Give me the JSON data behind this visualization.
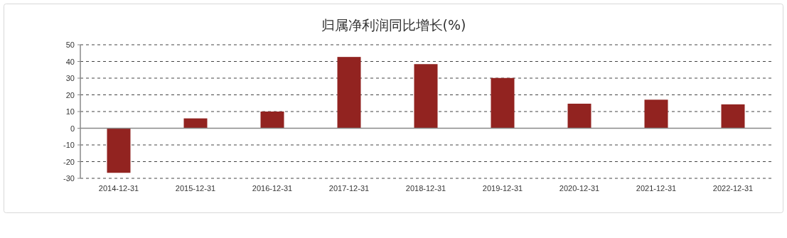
{
  "chart_data": {
    "type": "bar",
    "title": "归属净利润同比增长(%)",
    "categories": [
      "2014-12-31",
      "2015-12-31",
      "2016-12-31",
      "2017-12-31",
      "2018-12-31",
      "2019-12-31",
      "2020-12-31",
      "2021-12-31",
      "2022-12-31"
    ],
    "values": [
      -26.7,
      5.9,
      10.0,
      42.7,
      38.4,
      30.1,
      14.7,
      17.1,
      14.3
    ],
    "color": "#922320",
    "ylim": [
      -30,
      50
    ],
    "yticks": [
      -30,
      -20,
      -10,
      0,
      10,
      20,
      30,
      40,
      50
    ],
    "grid": "y"
  }
}
